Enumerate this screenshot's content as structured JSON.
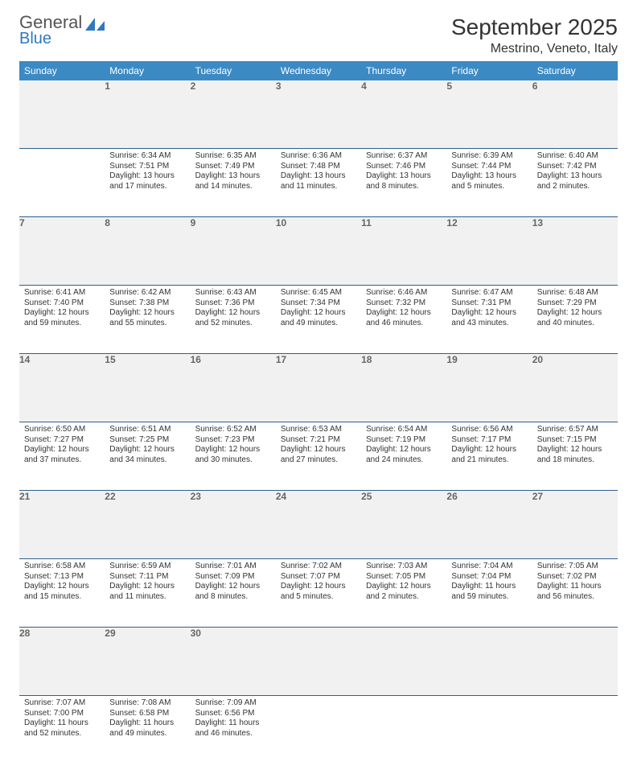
{
  "brand": {
    "name1": "General",
    "name2": "Blue"
  },
  "title": {
    "month": "September 2025",
    "location": "Mestrino, Veneto, Italy"
  },
  "colors": {
    "header_bg": "#3b8ac4",
    "daynum_bg": "#f1f1f1",
    "rule": "#2f5f8a",
    "logo_blue": "#2f78bf"
  },
  "weekday_labels": [
    "Sunday",
    "Monday",
    "Tuesday",
    "Wednesday",
    "Thursday",
    "Friday",
    "Saturday"
  ],
  "calendar": {
    "first_weekday_offset": 1,
    "days": [
      {
        "n": 1,
        "sunrise": "6:34 AM",
        "sunset": "7:51 PM",
        "daylight": "13 hours and 17 minutes."
      },
      {
        "n": 2,
        "sunrise": "6:35 AM",
        "sunset": "7:49 PM",
        "daylight": "13 hours and 14 minutes."
      },
      {
        "n": 3,
        "sunrise": "6:36 AM",
        "sunset": "7:48 PM",
        "daylight": "13 hours and 11 minutes."
      },
      {
        "n": 4,
        "sunrise": "6:37 AM",
        "sunset": "7:46 PM",
        "daylight": "13 hours and 8 minutes."
      },
      {
        "n": 5,
        "sunrise": "6:39 AM",
        "sunset": "7:44 PM",
        "daylight": "13 hours and 5 minutes."
      },
      {
        "n": 6,
        "sunrise": "6:40 AM",
        "sunset": "7:42 PM",
        "daylight": "13 hours and 2 minutes."
      },
      {
        "n": 7,
        "sunrise": "6:41 AM",
        "sunset": "7:40 PM",
        "daylight": "12 hours and 59 minutes."
      },
      {
        "n": 8,
        "sunrise": "6:42 AM",
        "sunset": "7:38 PM",
        "daylight": "12 hours and 55 minutes."
      },
      {
        "n": 9,
        "sunrise": "6:43 AM",
        "sunset": "7:36 PM",
        "daylight": "12 hours and 52 minutes."
      },
      {
        "n": 10,
        "sunrise": "6:45 AM",
        "sunset": "7:34 PM",
        "daylight": "12 hours and 49 minutes."
      },
      {
        "n": 11,
        "sunrise": "6:46 AM",
        "sunset": "7:32 PM",
        "daylight": "12 hours and 46 minutes."
      },
      {
        "n": 12,
        "sunrise": "6:47 AM",
        "sunset": "7:31 PM",
        "daylight": "12 hours and 43 minutes."
      },
      {
        "n": 13,
        "sunrise": "6:48 AM",
        "sunset": "7:29 PM",
        "daylight": "12 hours and 40 minutes."
      },
      {
        "n": 14,
        "sunrise": "6:50 AM",
        "sunset": "7:27 PM",
        "daylight": "12 hours and 37 minutes."
      },
      {
        "n": 15,
        "sunrise": "6:51 AM",
        "sunset": "7:25 PM",
        "daylight": "12 hours and 34 minutes."
      },
      {
        "n": 16,
        "sunrise": "6:52 AM",
        "sunset": "7:23 PM",
        "daylight": "12 hours and 30 minutes."
      },
      {
        "n": 17,
        "sunrise": "6:53 AM",
        "sunset": "7:21 PM",
        "daylight": "12 hours and 27 minutes."
      },
      {
        "n": 18,
        "sunrise": "6:54 AM",
        "sunset": "7:19 PM",
        "daylight": "12 hours and 24 minutes."
      },
      {
        "n": 19,
        "sunrise": "6:56 AM",
        "sunset": "7:17 PM",
        "daylight": "12 hours and 21 minutes."
      },
      {
        "n": 20,
        "sunrise": "6:57 AM",
        "sunset": "7:15 PM",
        "daylight": "12 hours and 18 minutes."
      },
      {
        "n": 21,
        "sunrise": "6:58 AM",
        "sunset": "7:13 PM",
        "daylight": "12 hours and 15 minutes."
      },
      {
        "n": 22,
        "sunrise": "6:59 AM",
        "sunset": "7:11 PM",
        "daylight": "12 hours and 11 minutes."
      },
      {
        "n": 23,
        "sunrise": "7:01 AM",
        "sunset": "7:09 PM",
        "daylight": "12 hours and 8 minutes."
      },
      {
        "n": 24,
        "sunrise": "7:02 AM",
        "sunset": "7:07 PM",
        "daylight": "12 hours and 5 minutes."
      },
      {
        "n": 25,
        "sunrise": "7:03 AM",
        "sunset": "7:05 PM",
        "daylight": "12 hours and 2 minutes."
      },
      {
        "n": 26,
        "sunrise": "7:04 AM",
        "sunset": "7:04 PM",
        "daylight": "11 hours and 59 minutes."
      },
      {
        "n": 27,
        "sunrise": "7:05 AM",
        "sunset": "7:02 PM",
        "daylight": "11 hours and 56 minutes."
      },
      {
        "n": 28,
        "sunrise": "7:07 AM",
        "sunset": "7:00 PM",
        "daylight": "11 hours and 52 minutes."
      },
      {
        "n": 29,
        "sunrise": "7:08 AM",
        "sunset": "6:58 PM",
        "daylight": "11 hours and 49 minutes."
      },
      {
        "n": 30,
        "sunrise": "7:09 AM",
        "sunset": "6:56 PM",
        "daylight": "11 hours and 46 minutes."
      }
    ]
  },
  "labels": {
    "sunrise": "Sunrise:",
    "sunset": "Sunset:",
    "daylight": "Daylight:"
  }
}
